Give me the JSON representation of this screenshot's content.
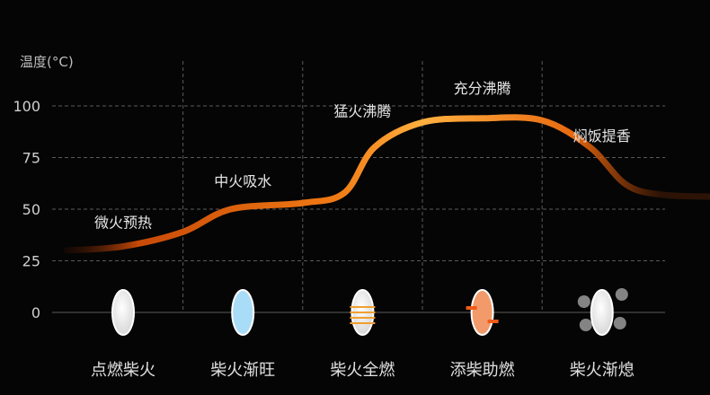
{
  "chart_data": {
    "type": "line",
    "title": "",
    "ylabel": "温度(°C)",
    "xlabel": "",
    "ylim": [
      0,
      100
    ],
    "yticks": [
      0,
      25,
      50,
      75,
      100
    ],
    "grid": true,
    "stages": [
      "点燃柴火",
      "柴火渐旺",
      "柴火全燃",
      "添柴助燃",
      "柴火渐熄"
    ],
    "stage_icons": [
      "rice-grain-white-icon",
      "rice-grain-blue-icon",
      "rice-grain-heat-rings-icon",
      "rice-grain-orange-arrows-icon",
      "rice-grain-steam-icon"
    ],
    "series": [
      {
        "x": [
          -0.47,
          0,
          0.5,
          0.9,
          1.5,
          1.85,
          2.1,
          2.5,
          3,
          3.5,
          3.9,
          4.2,
          4.5,
          4.98
        ],
        "y": [
          30,
          32,
          39,
          50,
          53,
          58,
          80,
          92,
          94,
          93,
          80,
          62,
          57,
          56
        ]
      }
    ],
    "annotations": [
      {
        "text": "微火预热",
        "x": 0,
        "y": 41
      },
      {
        "text": "中火吸水",
        "x": 1,
        "y": 61
      },
      {
        "text": "猛火沸腾",
        "x": 2,
        "y": 95
      },
      {
        "text": "充分沸腾",
        "x": 3,
        "y": 106
      },
      {
        "text": "焖饭提香",
        "x": 4,
        "y": 83
      }
    ],
    "colors": {
      "line_start": "#c84a08",
      "line_mid": "#f07a14",
      "line_peak": "#ffb040",
      "text": "#e6e6e6",
      "grid": "#5a5a5a"
    }
  }
}
